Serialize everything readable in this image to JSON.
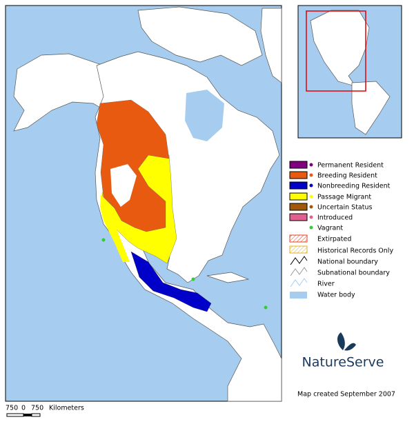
{
  "legend": {
    "items": [
      "Permanent Resident",
      "Breeding Resident",
      "Nonbreeding Resident",
      "Passage Migrant",
      "Uncertain Status",
      "Introduced",
      "Vagrant",
      "Extirpated",
      "Historical Records Only",
      "National boundary",
      "Subnational boundary",
      "River",
      "Water body"
    ]
  },
  "scale": {
    "labels": [
      "750",
      "0",
      "750",
      "Kilometers"
    ]
  },
  "logo": "NatureServe",
  "credit": "Map created September 2007"
}
